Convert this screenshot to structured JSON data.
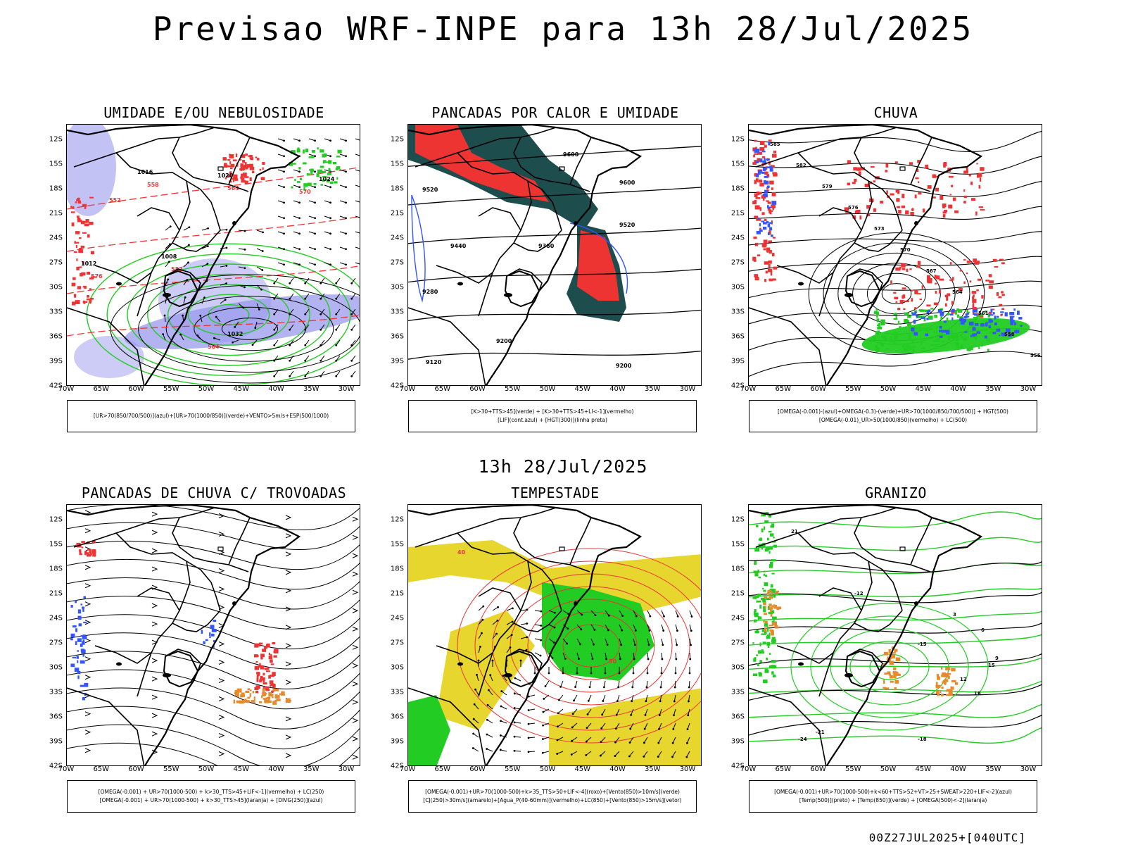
{
  "main_title": "Previsao WRF-INPE  para 13h 28/Jul/2025",
  "mid_title": "13h 28/Jul/2025",
  "footer": "00Z27JUL2025+[040UTC]",
  "map": {
    "lat_labels": [
      "12S",
      "15S",
      "18S",
      "21S",
      "24S",
      "27S",
      "30S",
      "33S",
      "36S",
      "39S",
      "42S"
    ],
    "lon_labels": [
      "70W",
      "65W",
      "60W",
      "55W",
      "50W",
      "45W",
      "40W",
      "35W",
      "30W"
    ]
  },
  "colors": {
    "blue_shade": "#9999ee",
    "green": "#22cc22",
    "red": "#ee3333",
    "dark_teal": "#1e4d4d",
    "yellow": "#e6d62e",
    "orange": "#e88a2a",
    "blue": "#3355ff"
  },
  "panels": [
    {
      "id": "umidade",
      "title": "UMIDADE E/OU NEBULOSIDADE",
      "legend": [
        "[UR>70(850/700/500)](azul)+[UR>70(1000/850)](verde)+VENTO>5m/s+ESP(500/1000)"
      ],
      "labels": [
        "1016",
        "1020",
        "1024",
        "1012",
        "1008",
        "1032",
        "552",
        "558",
        "564",
        "570",
        "576",
        "582",
        "584"
      ]
    },
    {
      "id": "pancadas-calor",
      "title": "PANCADAS POR CALOR E UMIDADE",
      "legend": [
        "[K>30+TTS>45](verde) + [K>30+TTS>45+LI<-1](vermelho)",
        "[LIF](cont.azul) + [HGT(300)](linha preta)"
      ],
      "labels": [
        "9600",
        "9520",
        "9440",
        "9360",
        "9280",
        "9200",
        "9120"
      ]
    },
    {
      "id": "chuva",
      "title": "CHUVA",
      "legend": [
        "[OMEGA(-0.001)-(azul)+OMEGA(-0.3)-(verde)+UR>70(1000/850/700/500)] + HGT(500)",
        "[OMEGA(-0.01)_UR>50(1000/850)(vermelho) + LC(500)"
      ],
      "labels": [
        "585",
        "582",
        "579",
        "576",
        "573",
        "570",
        "567",
        "564",
        "561",
        "558",
        "555"
      ]
    },
    {
      "id": "trovoadas",
      "title": "PANCADAS DE CHUVA C/ TROVOADAS",
      "legend": [
        "[OMEGA(-0.001) + UR>70(1000-500) + k>30_TTS>45+LIF<-1](vermelho) + LC(250)",
        "[OMEGA(-0.001) + UR>70(1000-500) + k>30_TTS>45](laranja) + [DIVG(250)](azul)"
      ],
      "labels": []
    },
    {
      "id": "tempestade",
      "title": "TEMPESTADE",
      "legend": [
        "[OMEGA(-0.001)+UR>70(1000-500)+k>35_TTS>50+LIF<-4](roxo)+[Vento(850)>10m/s](verde)",
        "[CJ(250)>30m/s](amarelo)+[Agua_P(40-60mm)](vermelho)+LC(850)+[Vento(850)>15m/s](vetor)"
      ],
      "labels": [
        "40",
        "50"
      ]
    },
    {
      "id": "granizo",
      "title": "GRANIZO",
      "legend": [
        "[OMEGA(-0.001)+UR>70(1000-500)+k<60+TTS>52+VT>25+SWEAT>220+LIF<-2](azul)",
        "[Temp(500)](preto) + [Temp(850)](verde) + [OMEGA(500)<-2](laranja)"
      ],
      "labels": [
        "-12",
        "-15",
        "-18",
        "-21",
        "-24",
        "3",
        "6",
        "9",
        "12",
        "15",
        "18",
        "21"
      ]
    }
  ]
}
